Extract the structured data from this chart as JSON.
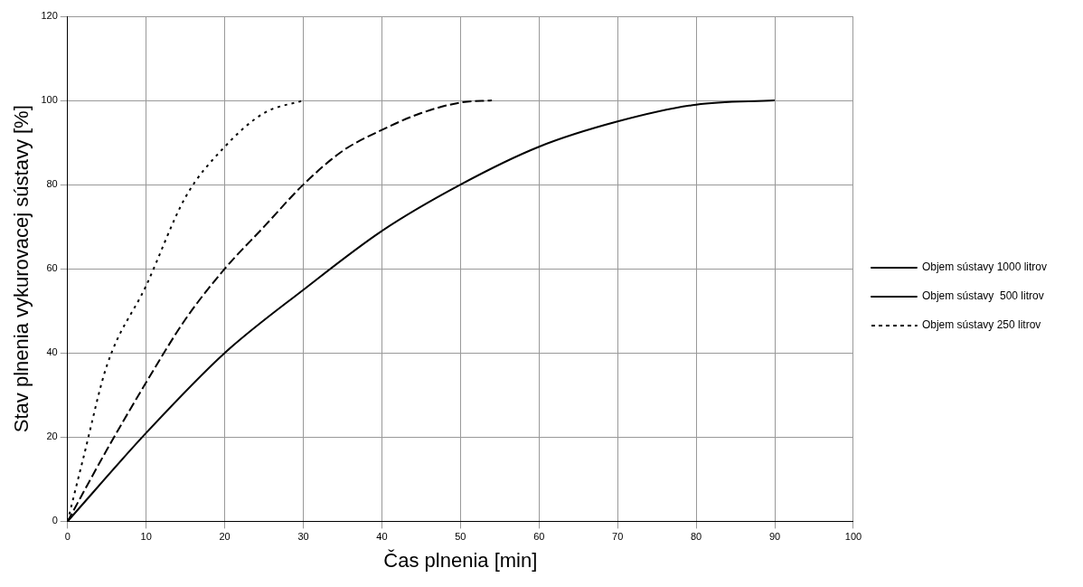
{
  "chart_data": {
    "type": "line",
    "xlabel": "Čas plnenia [min]",
    "ylabel": "Stav plnenia vykurovacej sústavy [%]",
    "xlim": [
      0,
      100
    ],
    "xticks": [
      0,
      10,
      20,
      30,
      40,
      50,
      60,
      70,
      80,
      90,
      100
    ],
    "ylim": [
      0,
      120
    ],
    "yticks": [
      0,
      20,
      40,
      60,
      80,
      100,
      120
    ],
    "grid": true,
    "legend": "right",
    "marker": "none",
    "series": [
      {
        "name": "Objem sústavy 1000 litrov",
        "color": "#000000",
        "line_style": "solid",
        "x": [
          0,
          10,
          20,
          30,
          40,
          50,
          60,
          70,
          80,
          90
        ],
        "values": [
          0,
          21,
          40,
          55,
          69,
          80,
          89,
          95,
          99,
          100
        ]
      },
      {
        "name": "Objem sústavy  500 litrov",
        "color": "#000000",
        "line_style": "dashed",
        "x": [
          0,
          5,
          10,
          15,
          20,
          25,
          30,
          35,
          40,
          45,
          50,
          54
        ],
        "values": [
          0,
          17,
          33,
          48,
          60,
          70,
          80,
          88,
          93,
          97,
          99.5,
          100
        ]
      },
      {
        "name": "Objem sústavy 250 litrov",
        "color": "#000000",
        "line_style": "dotted",
        "x": [
          0,
          2,
          5,
          10,
          15,
          20,
          25,
          30
        ],
        "values": [
          0,
          15,
          37,
          56,
          77,
          89,
          97,
          100
        ]
      }
    ]
  }
}
